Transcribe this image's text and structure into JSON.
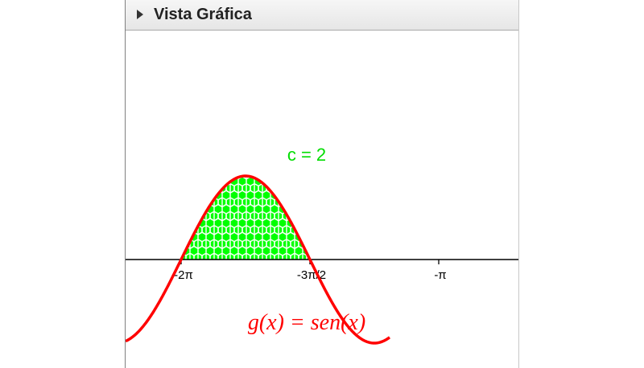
{
  "panel": {
    "title": "Vista Gráfica"
  },
  "graph": {
    "function_label": "g(x)  =  sen(x)",
    "slider_label": "c = 2",
    "axis_ticks": [
      "-2π",
      "-3π/2",
      "-π"
    ],
    "colors": {
      "curve": "#ff0000",
      "fill": "#00ff00",
      "axis": "#000000"
    }
  }
}
